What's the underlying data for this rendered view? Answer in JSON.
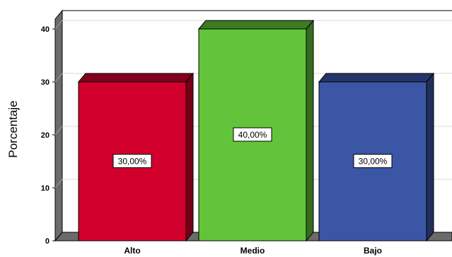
{
  "chart_data": {
    "type": "bar",
    "categories": [
      "Alto",
      "Medio",
      "Bajo"
    ],
    "values": [
      30,
      40,
      30
    ],
    "data_labels": [
      "30,00%",
      "40,00%",
      "30,00%"
    ],
    "colors": [
      "#d2002c",
      "#62c43a",
      "#3c56a6"
    ],
    "ylabel": "Porcentaje",
    "xlabel": "",
    "ylim": [
      0,
      42
    ],
    "yticks": [
      0,
      10,
      20,
      30,
      40
    ],
    "grid": true,
    "style": "3d"
  }
}
